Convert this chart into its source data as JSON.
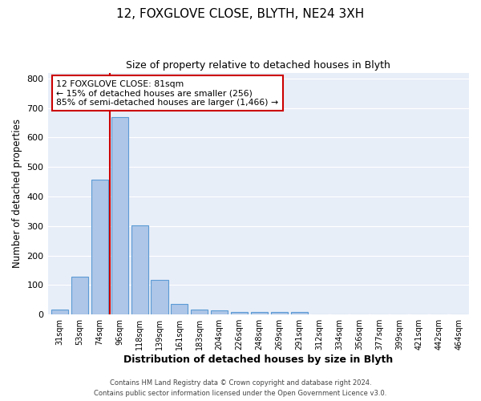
{
  "title1": "12, FOXGLOVE CLOSE, BLYTH, NE24 3XH",
  "title2": "Size of property relative to detached houses in Blyth",
  "xlabel": "Distribution of detached houses by size in Blyth",
  "ylabel": "Number of detached properties",
  "bar_labels": [
    "31sqm",
    "53sqm",
    "74sqm",
    "96sqm",
    "118sqm",
    "139sqm",
    "161sqm",
    "183sqm",
    "204sqm",
    "226sqm",
    "248sqm",
    "269sqm",
    "291sqm",
    "312sqm",
    "334sqm",
    "356sqm",
    "377sqm",
    "399sqm",
    "421sqm",
    "442sqm",
    "464sqm"
  ],
  "bar_values": [
    18,
    128,
    458,
    668,
    302,
    118,
    35,
    18,
    14,
    8,
    8,
    8,
    10,
    0,
    0,
    0,
    0,
    0,
    0,
    0,
    0
  ],
  "bar_color": "#aec6e8",
  "bar_edge_color": "#5b9bd5",
  "vline_x": 2.5,
  "vline_color": "#cc0000",
  "ylim": [
    0,
    820
  ],
  "yticks": [
    0,
    100,
    200,
    300,
    400,
    500,
    600,
    700,
    800
  ],
  "annotation_title": "12 FOXGLOVE CLOSE: 81sqm",
  "annotation_line1": "← 15% of detached houses are smaller (256)",
  "annotation_line2": "85% of semi-detached houses are larger (1,466) →",
  "annotation_box_color": "#ffffff",
  "annotation_box_edge": "#cc0000",
  "footer1": "Contains HM Land Registry data © Crown copyright and database right 2024.",
  "footer2": "Contains public sector information licensed under the Open Government Licence v3.0.",
  "background_color": "#ffffff",
  "plot_bg_color": "#e8eef8"
}
